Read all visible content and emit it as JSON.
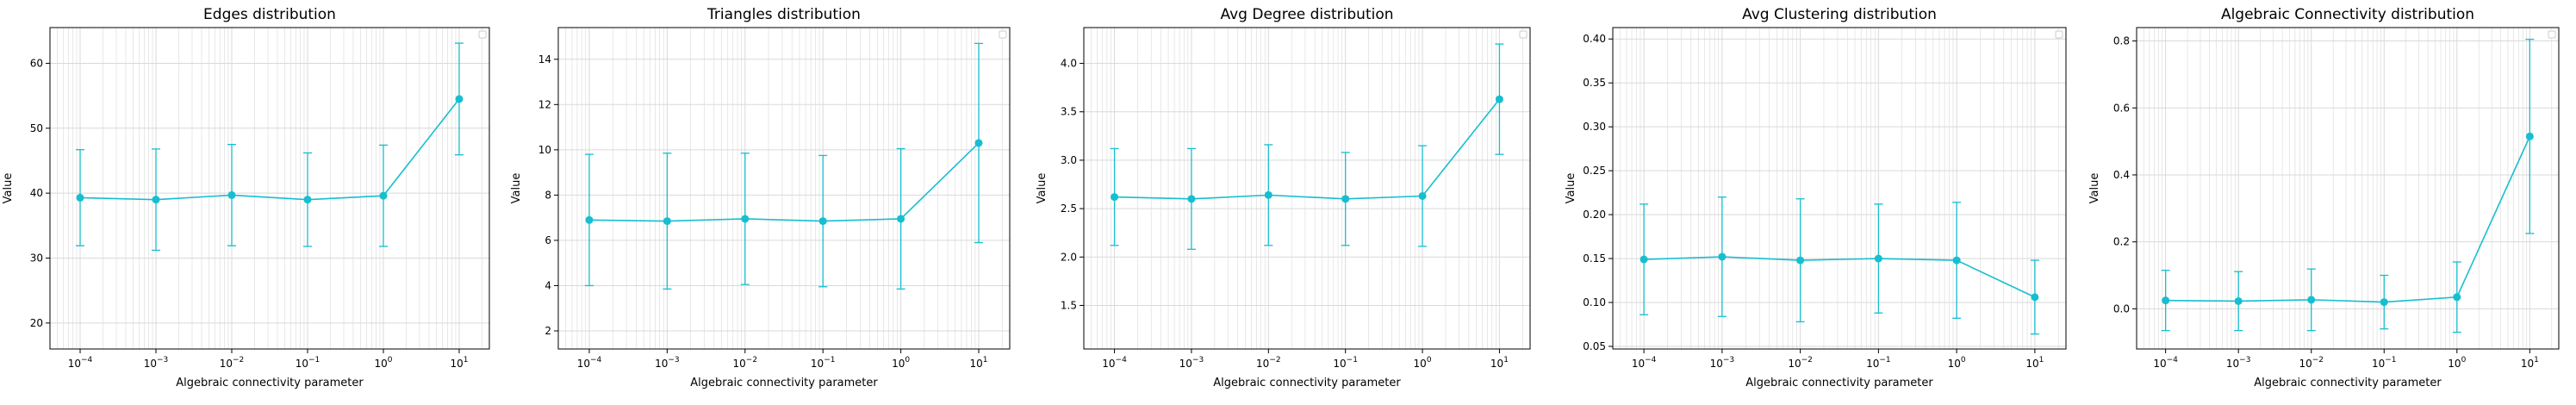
{
  "figure": {
    "series_color": "#17becf",
    "grid_color": "#d9d9d9",
    "legend": "top-right (empty box)"
  },
  "chart_data": [
    {
      "type": "line",
      "title": "Edges distribution",
      "xlabel": "Algebraic connectivity parameter",
      "ylabel": "Value",
      "x_scale": "log",
      "x": [
        0.0001,
        0.001,
        0.01,
        0.1,
        1,
        10
      ],
      "y": [
        39.3,
        39.0,
        39.7,
        39.0,
        39.6,
        54.5
      ],
      "yerr": [
        7.4,
        7.8,
        7.8,
        7.2,
        7.8,
        8.6
      ],
      "xlim": [
        4e-05,
        25
      ],
      "ylim": [
        16,
        65.5
      ],
      "xticks": [
        0.0001,
        0.001,
        0.01,
        0.1,
        1,
        10
      ],
      "xtick_labels": [
        [
          "10",
          "−4"
        ],
        [
          "10",
          "−3"
        ],
        [
          "10",
          "−2"
        ],
        [
          "10",
          "−1"
        ],
        [
          "10",
          "0"
        ],
        [
          "10",
          "1"
        ]
      ],
      "yticks": [
        20,
        30,
        40,
        50,
        60
      ],
      "ytick_labels": [
        "20",
        "30",
        "40",
        "50",
        "60"
      ],
      "grid": true
    },
    {
      "type": "line",
      "title": "Triangles distribution",
      "xlabel": "Algebraic connectivity parameter",
      "ylabel": "Value",
      "x_scale": "log",
      "x": [
        0.0001,
        0.001,
        0.01,
        0.1,
        1,
        10
      ],
      "y": [
        6.9,
        6.85,
        6.95,
        6.85,
        6.95,
        10.3
      ],
      "yerr": [
        2.9,
        3.0,
        2.9,
        2.9,
        3.1,
        4.4
      ],
      "xlim": [
        4e-05,
        25
      ],
      "ylim": [
        1.2,
        15.4
      ],
      "xticks": [
        0.0001,
        0.001,
        0.01,
        0.1,
        1,
        10
      ],
      "xtick_labels": [
        [
          "10",
          "−4"
        ],
        [
          "10",
          "−3"
        ],
        [
          "10",
          "−2"
        ],
        [
          "10",
          "−1"
        ],
        [
          "10",
          "0"
        ],
        [
          "10",
          "1"
        ]
      ],
      "yticks": [
        2,
        4,
        6,
        8,
        10,
        12,
        14
      ],
      "ytick_labels": [
        "2",
        "4",
        "6",
        "8",
        "10",
        "12",
        "14"
      ],
      "grid": true
    },
    {
      "type": "line",
      "title": "Avg Degree distribution",
      "xlabel": "Algebraic connectivity parameter",
      "ylabel": "Value",
      "x_scale": "log",
      "x": [
        0.0001,
        0.001,
        0.01,
        0.1,
        1,
        10
      ],
      "y": [
        2.62,
        2.6,
        2.64,
        2.6,
        2.63,
        3.63
      ],
      "yerr": [
        0.5,
        0.52,
        0.52,
        0.48,
        0.52,
        0.57
      ],
      "xlim": [
        4e-05,
        25
      ],
      "ylim": [
        1.05,
        4.37
      ],
      "xticks": [
        0.0001,
        0.001,
        0.01,
        0.1,
        1,
        10
      ],
      "xtick_labels": [
        [
          "10",
          "−4"
        ],
        [
          "10",
          "−3"
        ],
        [
          "10",
          "−2"
        ],
        [
          "10",
          "−1"
        ],
        [
          "10",
          "0"
        ],
        [
          "10",
          "1"
        ]
      ],
      "yticks": [
        1.5,
        2.0,
        2.5,
        3.0,
        3.5,
        4.0
      ],
      "ytick_labels": [
        "1.5",
        "2.0",
        "2.5",
        "3.0",
        "3.5",
        "4.0"
      ],
      "grid": true
    },
    {
      "type": "line",
      "title": "Avg Clustering distribution",
      "xlabel": "Algebraic connectivity parameter",
      "ylabel": "Value",
      "x_scale": "log",
      "x": [
        0.0001,
        0.001,
        0.01,
        0.1,
        1,
        10
      ],
      "y": [
        0.149,
        0.152,
        0.148,
        0.15,
        0.148,
        0.106
      ],
      "yerr": [
        0.063,
        0.068,
        0.07,
        0.062,
        0.066,
        0.042
      ],
      "xlim": [
        4e-05,
        25
      ],
      "ylim": [
        0.047,
        0.413
      ],
      "xticks": [
        0.0001,
        0.001,
        0.01,
        0.1,
        1,
        10
      ],
      "xtick_labels": [
        [
          "10",
          "−4"
        ],
        [
          "10",
          "−3"
        ],
        [
          "10",
          "−2"
        ],
        [
          "10",
          "−1"
        ],
        [
          "10",
          "0"
        ],
        [
          "10",
          "1"
        ]
      ],
      "yticks": [
        0.05,
        0.1,
        0.15,
        0.2,
        0.25,
        0.3,
        0.35,
        0.4
      ],
      "ytick_labels": [
        "0.05",
        "0.10",
        "0.15",
        "0.20",
        "0.25",
        "0.30",
        "0.35",
        "0.40"
      ],
      "grid": true
    },
    {
      "type": "line",
      "title": "Algebraic Connectivity distribution",
      "xlabel": "Algebraic connectivity parameter",
      "ylabel": "Value",
      "x_scale": "log",
      "x": [
        0.0001,
        0.001,
        0.01,
        0.1,
        1,
        10
      ],
      "y": [
        0.025,
        0.023,
        0.027,
        0.02,
        0.035,
        0.515
      ],
      "yerr": [
        0.09,
        0.088,
        0.092,
        0.08,
        0.105,
        0.29
      ],
      "xlim": [
        4e-05,
        25
      ],
      "ylim": [
        -0.12,
        0.84
      ],
      "xticks": [
        0.0001,
        0.001,
        0.01,
        0.1,
        1,
        10
      ],
      "xtick_labels": [
        [
          "10",
          "−4"
        ],
        [
          "10",
          "−3"
        ],
        [
          "10",
          "−2"
        ],
        [
          "10",
          "−1"
        ],
        [
          "10",
          "0"
        ],
        [
          "10",
          "1"
        ]
      ],
      "yticks": [
        0.0,
        0.2,
        0.4,
        0.6,
        0.8
      ],
      "ytick_labels": [
        "0.0",
        "0.2",
        "0.4",
        "0.6",
        "0.8"
      ],
      "grid": true
    }
  ]
}
